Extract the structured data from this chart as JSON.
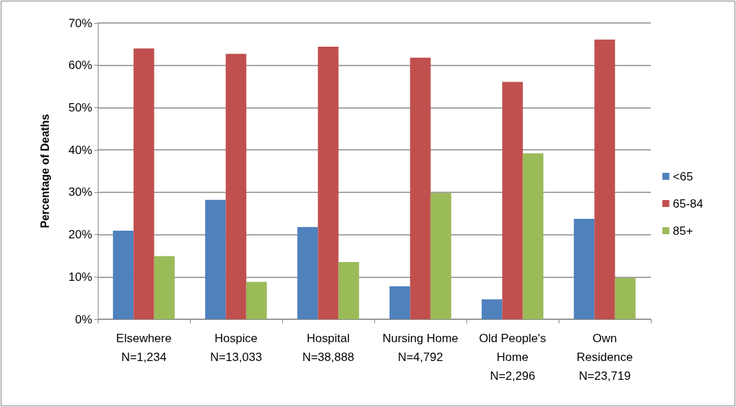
{
  "chart_data": {
    "type": "bar",
    "ylabel": "Percentage of Deaths",
    "categories": [
      "Elsewhere\nN=1,234",
      "Hospice\nN=13,033",
      "Hospital\nN=38,888",
      "Nursing Home\nN=4,792",
      "Old People's\nHome\nN=2,296",
      "Own\nResidence\nN=23,719"
    ],
    "series": [
      {
        "name": "<65",
        "color": "#4f81bd",
        "values": [
          20.9,
          28.2,
          21.8,
          7.8,
          4.7,
          23.7
        ]
      },
      {
        "name": "65-84",
        "color": "#c0504d",
        "values": [
          64.0,
          62.7,
          64.4,
          61.8,
          56.1,
          66.1
        ]
      },
      {
        "name": "85+",
        "color": "#9bbb59",
        "values": [
          14.9,
          8.8,
          13.5,
          29.8,
          39.2,
          9.7
        ]
      }
    ],
    "ylim": [
      0,
      70
    ],
    "yticks": [
      {
        "value": 0,
        "label": "0%"
      },
      {
        "value": 10,
        "label": "10%"
      },
      {
        "value": 20,
        "label": "20%"
      },
      {
        "value": 30,
        "label": "30%"
      },
      {
        "value": 40,
        "label": "40%"
      },
      {
        "value": 50,
        "label": "50%"
      },
      {
        "value": 60,
        "label": "60%"
      },
      {
        "value": 70,
        "label": "70%"
      }
    ],
    "grid": "y",
    "legend": "right"
  }
}
